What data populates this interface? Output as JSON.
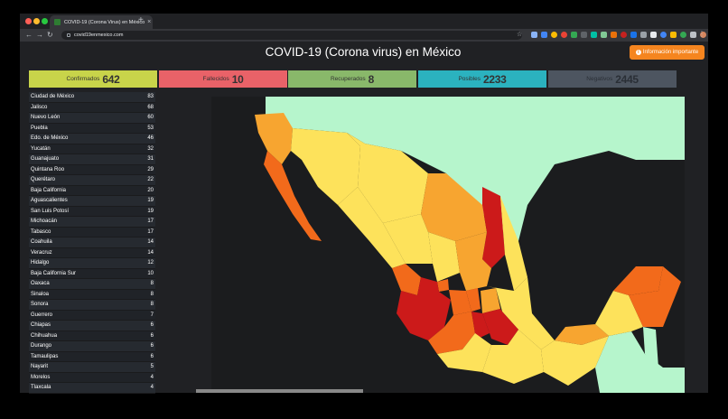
{
  "browser": {
    "tab_title": "COVID-19 (Corona Virus) en México",
    "tab_close": "×",
    "new_tab": "+",
    "url": "covid19enmexico.com"
  },
  "page": {
    "title": "COVID-19 (Corona virus) en México",
    "info_button": "Información importante"
  },
  "stats": [
    {
      "label": "Confirmados",
      "value": "642",
      "color": "#c8d44a"
    },
    {
      "label": "Fallecidos",
      "value": "10",
      "color": "#e96268"
    },
    {
      "label": "Recuperados",
      "value": "8",
      "color": "#89b86a"
    },
    {
      "label": "Posibles",
      "value": "2233",
      "color": "#2bb2bf"
    },
    {
      "label": "Negativos",
      "value": "2445",
      "color": "#4d5560"
    }
  ],
  "states": [
    {
      "name": "Ciudad de México",
      "count": "83"
    },
    {
      "name": "Jalisco",
      "count": "68"
    },
    {
      "name": "Nuevo León",
      "count": "60"
    },
    {
      "name": "Puebla",
      "count": "53"
    },
    {
      "name": "Edo. de México",
      "count": "46"
    },
    {
      "name": "Yucatán",
      "count": "32"
    },
    {
      "name": "Guanajuato",
      "count": "31"
    },
    {
      "name": "Quintana Roo",
      "count": "29"
    },
    {
      "name": "Querétaro",
      "count": "22"
    },
    {
      "name": "Baja California",
      "count": "20"
    },
    {
      "name": "Aguascalientes",
      "count": "19"
    },
    {
      "name": "San Luis Potosí",
      "count": "19"
    },
    {
      "name": "Michoacán",
      "count": "17"
    },
    {
      "name": "Tabasco",
      "count": "17"
    },
    {
      "name": "Coahuila",
      "count": "14"
    },
    {
      "name": "Veracruz",
      "count": "14"
    },
    {
      "name": "Hidalgo",
      "count": "12"
    },
    {
      "name": "Baja California Sur",
      "count": "10"
    },
    {
      "name": "Oaxaca",
      "count": "8"
    },
    {
      "name": "Sinaloa",
      "count": "8"
    },
    {
      "name": "Sonora",
      "count": "8"
    },
    {
      "name": "Guerrero",
      "count": "7"
    },
    {
      "name": "Chiapas",
      "count": "6"
    },
    {
      "name": "Chihuahua",
      "count": "6"
    },
    {
      "name": "Durango",
      "count": "6"
    },
    {
      "name": "Tamaulipas",
      "count": "6"
    },
    {
      "name": "Nayarit",
      "count": "5"
    },
    {
      "name": "Morelos",
      "count": "4"
    },
    {
      "name": "Tlaxcala",
      "count": "4"
    }
  ],
  "map_colors": {
    "ocean": "#1b1c1e",
    "neighbor": "#b6f5cc",
    "low": "#fde25b",
    "mid": "#f7a530",
    "high": "#f26a1b",
    "max": "#cc1a1a"
  }
}
